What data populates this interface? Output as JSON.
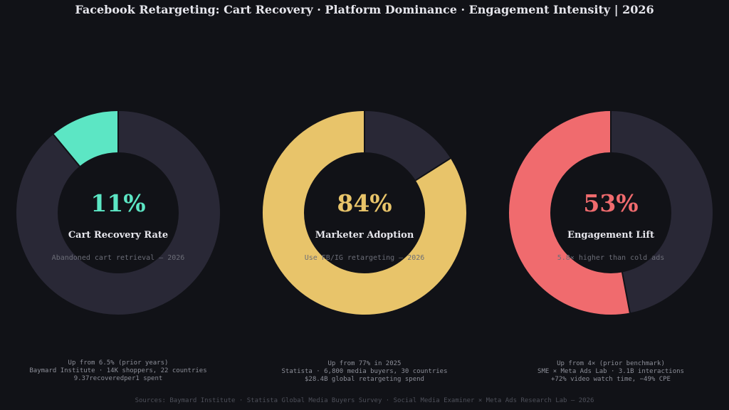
{
  "title": "Facebook Retargeting: Cart Recovery · Platform Dominance · Engagement Intensity  |  2026",
  "chart_data": {
    "type": "pie",
    "track_color": "#292836",
    "background": "#111217",
    "items": [
      {
        "value": 11,
        "label": "11%",
        "name": "Cart Recovery Rate",
        "subtitle": "Abandoned cart retrieval — 2026",
        "color": "#5ce6c4",
        "notes": [
          "Up from 6.5% (prior years)",
          "Baymard Institute · 14K shoppers, 22 countries",
          "9.37recoveredper1 spent"
        ]
      },
      {
        "value": 84,
        "label": "84%",
        "name": "Marketer Adoption",
        "subtitle": "Use FB/IG retargeting — 2026",
        "color": "#e8c46a",
        "notes": [
          "Up from 77% in 2025",
          "Statista · 6,800 media buyers, 30 countries",
          "$28.4B global retargeting spend"
        ]
      },
      {
        "value": 53,
        "label": "53%",
        "name": "Engagement Lift",
        "subtitle": "5.8× higher than cold ads",
        "color": "#f06b6e",
        "notes": [
          "Up from 4× (prior benchmark)",
          "SME × Meta Ads Lab · 3.1B interactions",
          "+72% video watch time, −49% CPE"
        ]
      }
    ]
  },
  "sources": "Sources: Baymard Institute · Statista Global Media Buyers Survey · Social Media Examiner × Meta Ads Research Lab — 2026"
}
